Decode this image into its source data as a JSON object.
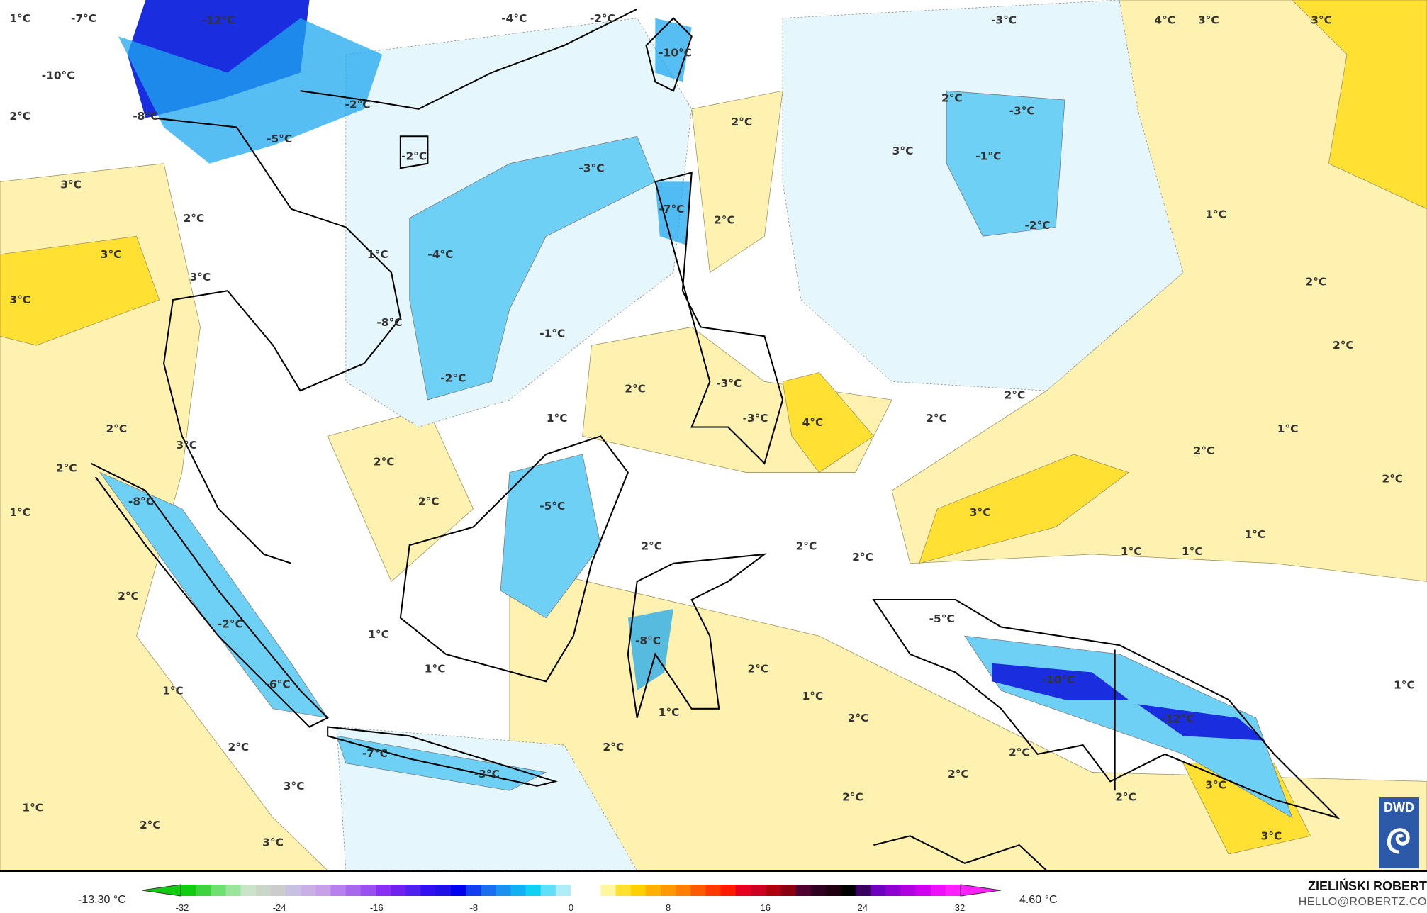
{
  "map": {
    "contour_labels": [
      "1°C",
      "-7°C",
      "-12°C",
      "-4°C",
      "-2°C",
      "-3°C",
      "4°C",
      "3°C",
      "3°C",
      "-10°C",
      "-10°C",
      "2°C",
      "-8°C",
      "-2°C",
      "2°C",
      "-3°C",
      "2°C",
      "-5°C",
      "-2°C",
      "-3°C",
      "3°C",
      "-1°C",
      "3°C",
      "-7°C",
      "2°C",
      "2°C",
      "-2°C",
      "1°C",
      "3°C",
      "-4°C",
      "3°C",
      "1°C",
      "3°C",
      "2°C",
      "-8°C",
      "-1°C",
      "2°C",
      "-2°C",
      "2°C",
      "2°C",
      "-3°C",
      "-3°C",
      "4°C",
      "2°C",
      "1°C",
      "2°C",
      "3°C",
      "1°C",
      "2°C",
      "2°C",
      "2°C",
      "2°C",
      "-8°C",
      "-5°C",
      "2°C",
      "1°C",
      "3°C",
      "2°C",
      "2°C",
      "2°C",
      "1°C",
      "1°C",
      "1°C",
      "2°C",
      "-5°C",
      "-2°C",
      "1°C",
      "-8°C",
      "1°C",
      "2°C",
      "-10°C",
      "1°C",
      "-6°C",
      "1°C",
      "1°C",
      "1°C",
      "2°C",
      "-12°C",
      "2°C",
      "-7°C",
      "-3°C",
      "2°C",
      "2°C",
      "2°C",
      "3°C",
      "3°C",
      "2°C",
      "2°C",
      "1°C",
      "2°C",
      "3°C",
      "3°C"
    ],
    "colors": {
      "warm": "#fff2b0",
      "warmer": "#ffe033",
      "cool": "#e6f6fd",
      "cold": "#6fd0f5",
      "colder": "#1fa8ef",
      "coldest": "#1a2ee0"
    }
  },
  "legend": {
    "min_label": "-13.30 °C",
    "max_label": "4.60 °C",
    "ticks": [
      "-32",
      "-24",
      "-16",
      "-8",
      "0",
      "8",
      "16",
      "24",
      "32"
    ],
    "palette": [
      "#11cc11",
      "#3dd43d",
      "#6ee06e",
      "#9be49b",
      "#c9e4c9",
      "#cbd6cb",
      "#cccccc",
      "#c8c0e0",
      "#c8b0e6",
      "#c8a0ea",
      "#b880ec",
      "#a868ee",
      "#9a50f0",
      "#8a30f2",
      "#7020f0",
      "#5020f0",
      "#3010f0",
      "#2010e8",
      "#0000ee",
      "#1040ee",
      "#1c6ef0",
      "#1a90f0",
      "#10b0f2",
      "#10d0f4",
      "#60e0f8",
      "#b0ecf8",
      "#ffffff",
      "#ffffff",
      "#fff6a0",
      "#ffe030",
      "#ffd000",
      "#ffb000",
      "#ff9800",
      "#ff8000",
      "#ff5a00",
      "#ff3a00",
      "#ff1a00",
      "#e80020",
      "#cc0020",
      "#b00010",
      "#8a0010",
      "#500030",
      "#300020",
      "#200010",
      "#000000",
      "#3a0060",
      "#7000c0",
      "#9000d0",
      "#b000e0",
      "#d000f0",
      "#ee10f8",
      "#ff20ff"
    ]
  },
  "credits": {
    "logo": "DWD",
    "author": "ZIELIŃSKI ROBERT",
    "email": "HELLO@ROBERTZ.CO"
  }
}
